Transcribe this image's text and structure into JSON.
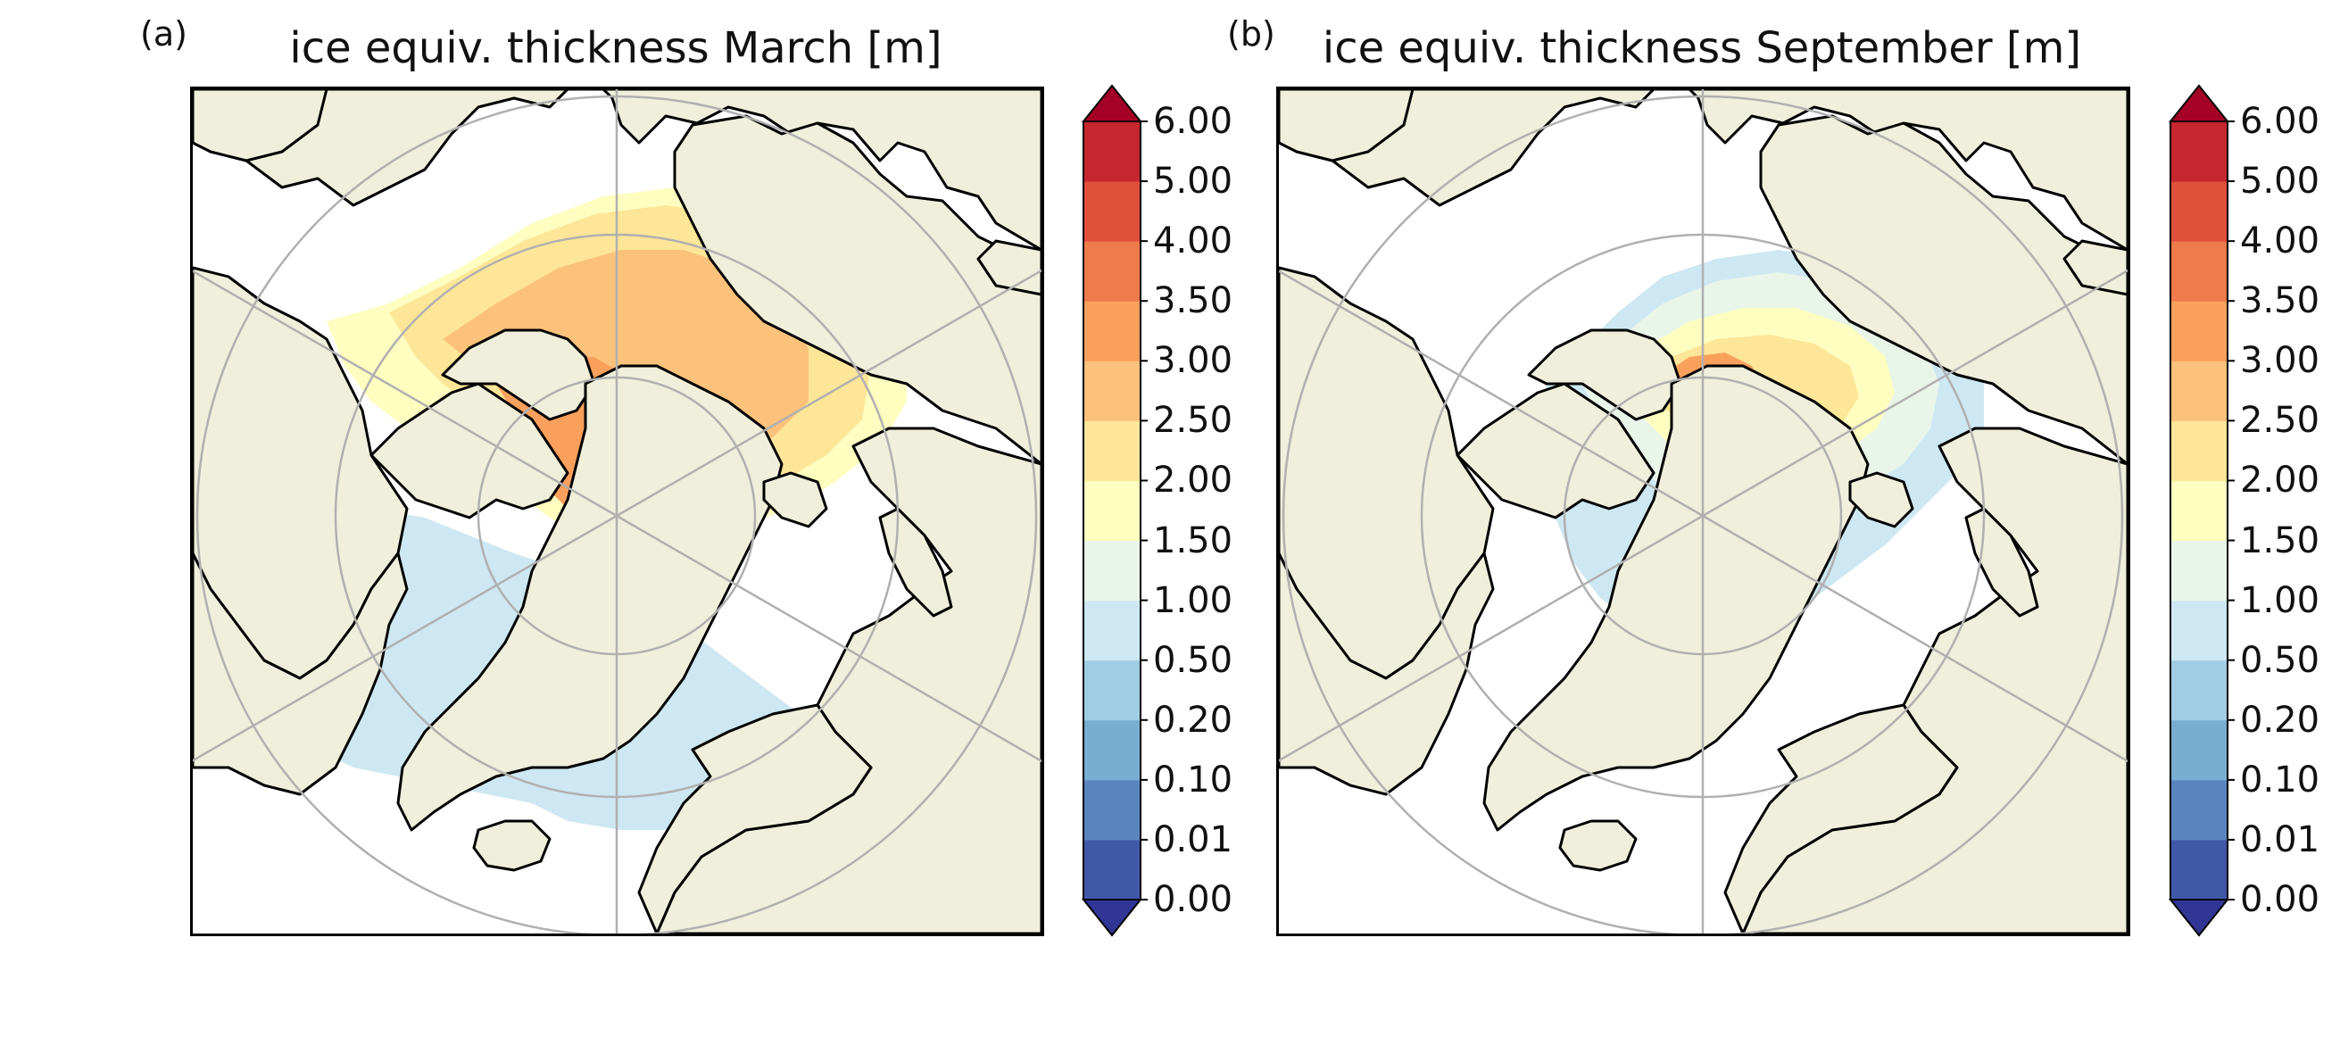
{
  "panels": [
    {
      "letter": "(a)",
      "title": "ice equiv. thickness March [m]"
    },
    {
      "letter": "(b)",
      "title": "ice equiv. thickness September [m]"
    }
  ],
  "colorbar": {
    "ticks": [
      "0.00",
      "0.01",
      "0.10",
      "0.20",
      "0.50",
      "1.00",
      "1.50",
      "2.00",
      "2.50",
      "3.00",
      "3.50",
      "4.00",
      "5.00",
      "6.00"
    ],
    "colors": [
      "#4158a8",
      "#5a86c0",
      "#78aed2",
      "#a0cde3",
      "#cde8f2",
      "#eaf5ea",
      "#fefec0",
      "#fde697",
      "#fcc27b",
      "#f8a05c",
      "#ef7b4a",
      "#e1503b",
      "#c5272e"
    ],
    "under_color": "#313695",
    "over_color": "#a50026"
  },
  "colors": {
    "land": "#efefdc",
    "ocean": "#ffffff",
    "grid": "#b0b0b0",
    "coast": "#000000"
  }
}
